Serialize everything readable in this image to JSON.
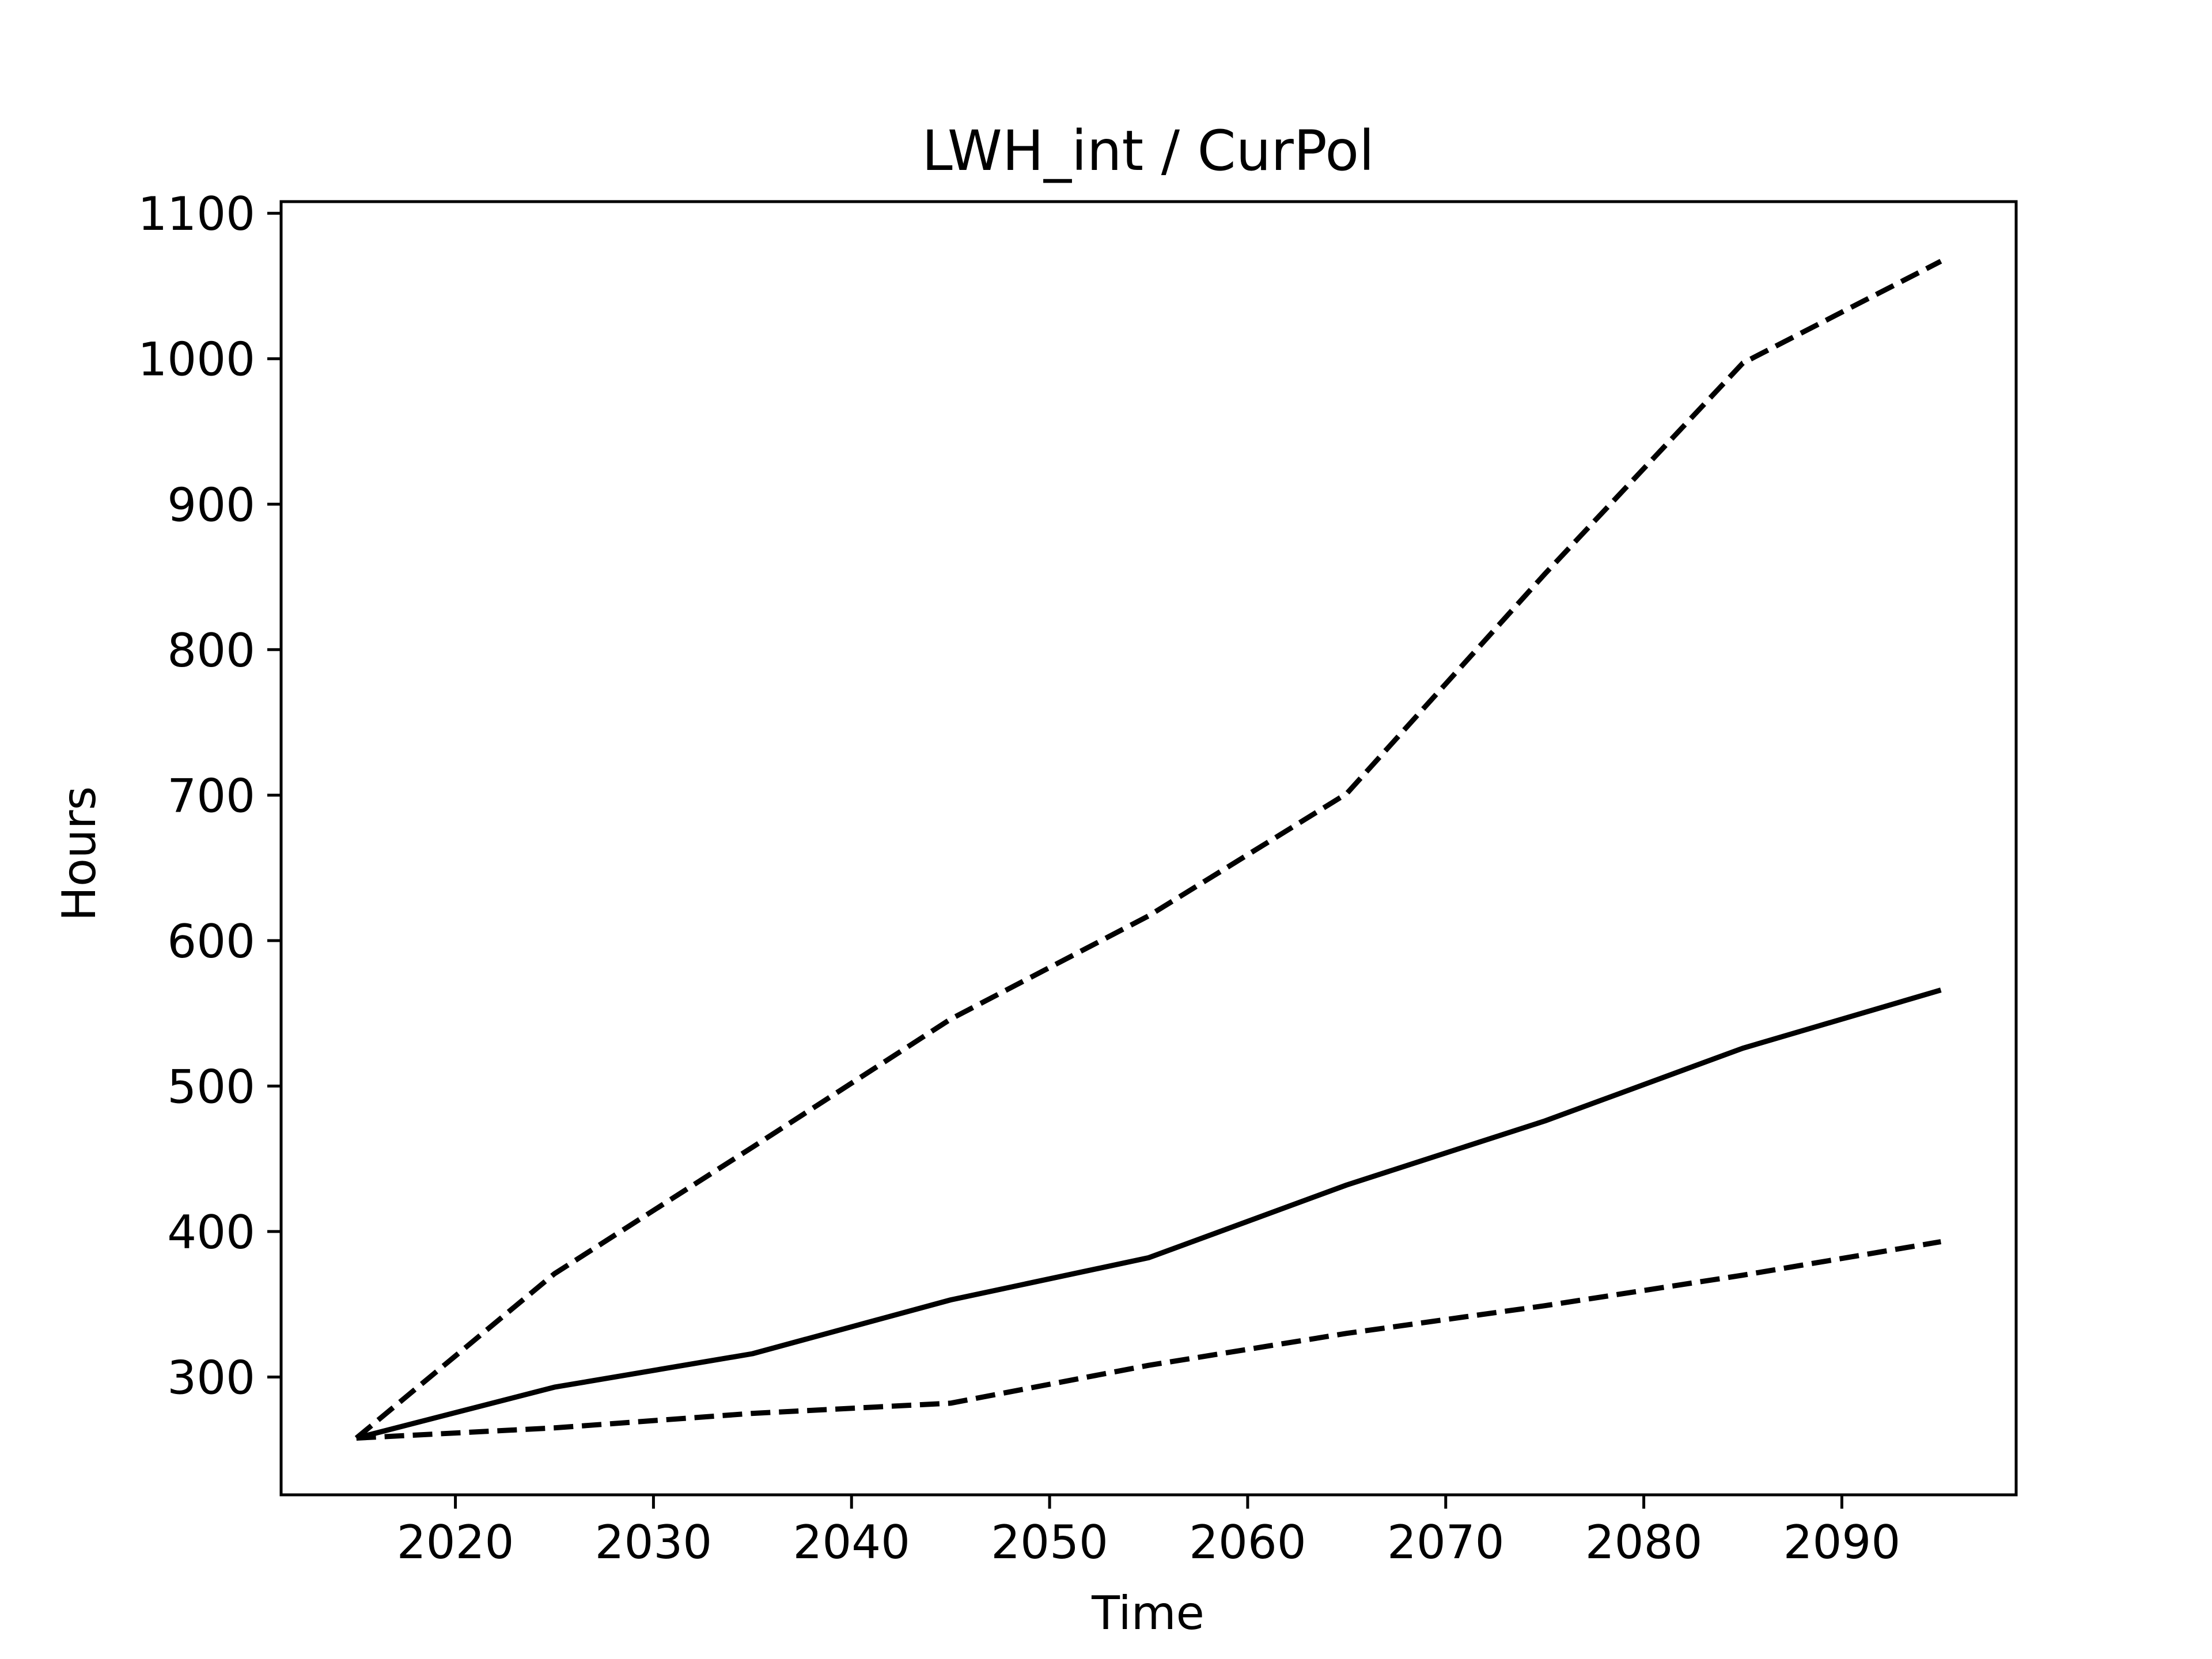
{
  "chart_data": {
    "type": "line",
    "title": "LWH_int / CurPol",
    "xlabel": "Time",
    "ylabel": "Hours",
    "xlim": [
      2011.2,
      2098.8
    ],
    "ylim": [
      219,
      1108
    ],
    "xticks": [
      2020,
      2030,
      2040,
      2050,
      2060,
      2070,
      2080,
      2090
    ],
    "yticks": [
      300,
      400,
      500,
      600,
      700,
      800,
      900,
      1000,
      1100
    ],
    "grid": false,
    "x": [
      2015,
      2025,
      2035,
      2045,
      2055,
      2065,
      2075,
      2085,
      2095
    ],
    "series": [
      {
        "style": "dashed",
        "color": "#000000",
        "values": [
          258,
          371,
          458,
          546,
          617,
          701,
          852,
          997,
          1067
        ]
      },
      {
        "style": "solid",
        "color": "#000000",
        "values": [
          258,
          293,
          316,
          353,
          382,
          432,
          476,
          526,
          566
        ]
      },
      {
        "style": "dashed",
        "color": "#000000",
        "values": [
          258,
          265,
          275,
          282,
          308,
          330,
          349,
          370,
          393
        ]
      }
    ]
  }
}
